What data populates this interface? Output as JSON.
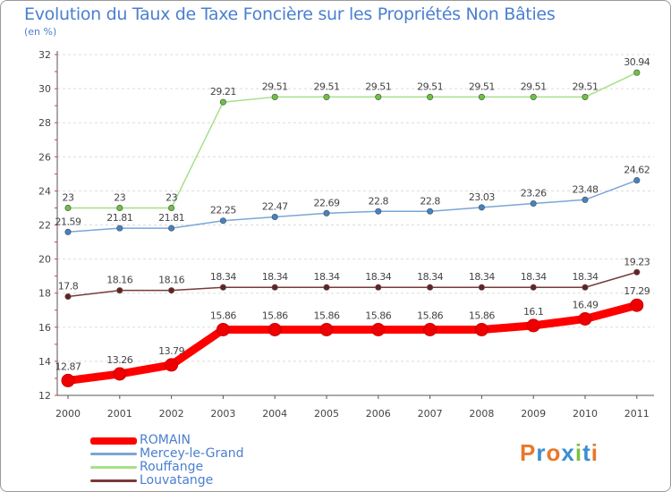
{
  "header": {
    "title": "Evolution du Taux de Taxe Foncière sur les Propriétés Non Bâties",
    "subtitle": "(en %)"
  },
  "logo": {
    "text": "Proxiti",
    "colors": [
      "#e8782a",
      "#3a8fd0",
      "#e8782a",
      "#3a8fd0",
      "#7cc040",
      "#3a8fd0",
      "#e8782a"
    ]
  },
  "chart_data": {
    "type": "line",
    "title": "Evolution du Taux de Taxe Foncière sur les Propriétés Non Bâties",
    "ylabel": "(en %)",
    "xlabel": "",
    "ylim": [
      12,
      32
    ],
    "yticks": [
      12,
      14,
      16,
      18,
      20,
      22,
      24,
      26,
      28,
      30,
      32
    ],
    "grid": true,
    "legend_position": "bottom-left",
    "categories": [
      "2000",
      "2001",
      "2002",
      "2003",
      "2004",
      "2005",
      "2006",
      "2007",
      "2008",
      "2009",
      "2010",
      "2011"
    ],
    "series": [
      {
        "name": "ROMAIN",
        "color": "#ff0000",
        "marker": "#ee0000",
        "emphasis": true,
        "values": [
          12.87,
          13.26,
          13.79,
          15.86,
          15.86,
          15.86,
          15.86,
          15.86,
          15.86,
          16.1,
          16.49,
          17.29
        ],
        "labels": [
          "12.87",
          "13.26",
          "13.79",
          "15.86",
          "15.86",
          "15.86",
          "15.86",
          "15.86",
          "15.86",
          "16.1",
          "16.49",
          "17.29"
        ]
      },
      {
        "name": "Mercey-le-Grand",
        "color": "#7aa6d6",
        "marker": "#3f84c8",
        "emphasis": false,
        "values": [
          21.59,
          21.81,
          21.81,
          22.25,
          22.47,
          22.69,
          22.8,
          22.8,
          23.03,
          23.26,
          23.48,
          24.62
        ],
        "labels": [
          "21.59",
          "21.81",
          "21.81",
          "22.25",
          "22.47",
          "22.69",
          "22.8",
          "22.8",
          "23.03",
          "23.26",
          "23.48",
          "24.62"
        ]
      },
      {
        "name": "Rouffange",
        "color": "#a6e08a",
        "marker": "#6cc43c",
        "emphasis": false,
        "values": [
          23,
          23,
          23,
          29.21,
          29.51,
          29.51,
          29.51,
          29.51,
          29.51,
          29.51,
          29.51,
          30.94
        ],
        "labels": [
          "23",
          "23",
          "23",
          "29.21",
          "29.51",
          "29.51",
          "29.51",
          "29.51",
          "29.51",
          "29.51",
          "29.51",
          "30.94"
        ]
      },
      {
        "name": "Louvatange",
        "color": "#7a3a3a",
        "marker": "#6a2020",
        "emphasis": false,
        "values": [
          17.8,
          18.16,
          18.16,
          18.34,
          18.34,
          18.34,
          18.34,
          18.34,
          18.34,
          18.34,
          18.34,
          19.23
        ],
        "labels": [
          "17.8",
          "18.16",
          "18.16",
          "18.34",
          "18.34",
          "18.34",
          "18.34",
          "18.34",
          "18.34",
          "18.34",
          "18.34",
          "19.23"
        ]
      }
    ]
  }
}
